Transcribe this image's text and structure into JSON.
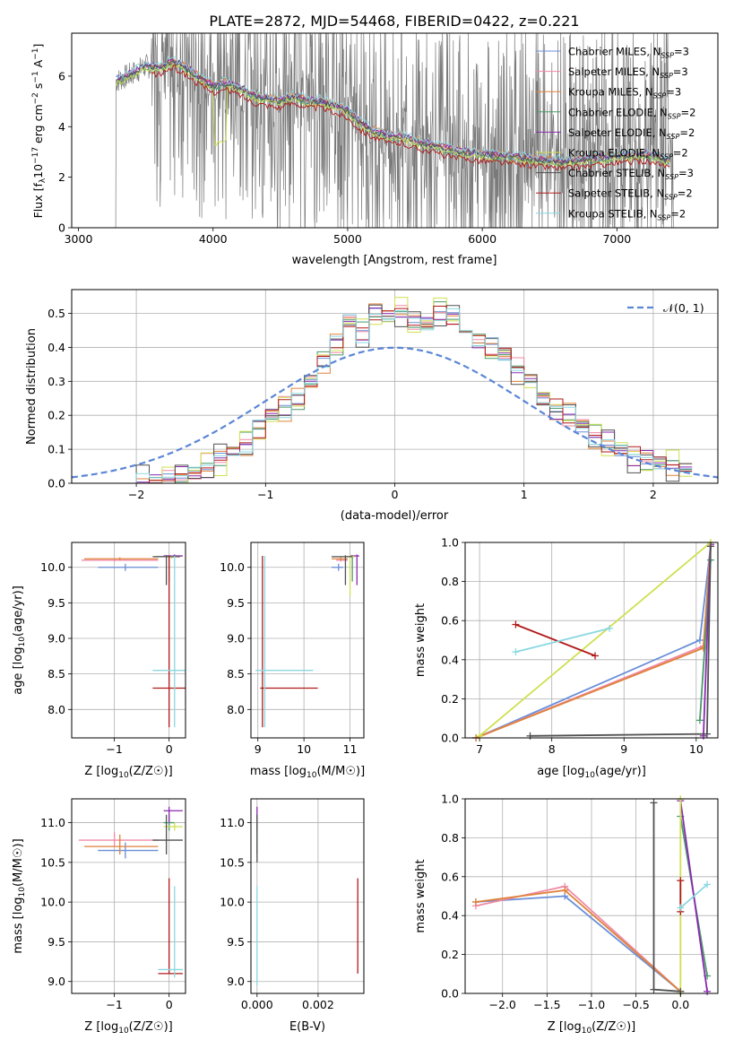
{
  "figure_title": "PLATE=2872, MJD=54468, FIBERID=0422, z=0.221",
  "series_styles": [
    {
      "name": "Chabrier MILES, N_SSP=3",
      "color": "#6a8fd8"
    },
    {
      "name": "Salpeter MILES, N_SSP=3",
      "color": "#f08aa6"
    },
    {
      "name": "Kroupa MILES, N_SSP=3",
      "color": "#e0823a"
    },
    {
      "name": "Chabrier ELODIE, N_SSP=2",
      "color": "#4a9a6a"
    },
    {
      "name": "Salpeter ELODIE, N_SSP=2",
      "color": "#8a2ab0"
    },
    {
      "name": "Kroupa ELODIE, N_SSP=2",
      "color": "#cfe050"
    },
    {
      "name": "Chabrier STELIB, N_SSP=3",
      "color": "#505050"
    },
    {
      "name": "Salpeter STELIB, N_SSP=2",
      "color": "#b01a1a"
    },
    {
      "name": "Kroupa STELIB, N_SSP=2",
      "color": "#8ad8e0"
    }
  ],
  "chart_data": [
    {
      "id": "spectrum",
      "type": "line",
      "xlabel": "wavelength [Angstrom, rest frame]",
      "ylabel": "Flux [f_λ 10^-17 erg cm^-2 s^-1 A^-1]",
      "xlim": [
        2950,
        7750
      ],
      "ylim": [
        0,
        7.7
      ],
      "xticks": [
        3000,
        4000,
        5000,
        6000,
        7000
      ],
      "yticks": [
        0,
        2,
        4,
        6
      ],
      "grid": false,
      "legend": "top-right",
      "legend_entries": [
        {
          "base": "Chabrier MILES, N",
          "sub": "SSP",
          "tail": "=3"
        },
        {
          "base": "Salpeter MILES, N",
          "sub": "SSP",
          "tail": "=3"
        },
        {
          "base": "Kroupa MILES, N",
          "sub": "SSP",
          "tail": "=3"
        },
        {
          "base": "Chabrier ELODIE, N",
          "sub": "SSP",
          "tail": "=2"
        },
        {
          "base": "Salpeter ELODIE, N",
          "sub": "SSP",
          "tail": "=2"
        },
        {
          "base": "Kroupa ELODIE, N",
          "sub": "SSP",
          "tail": "=2"
        },
        {
          "base": "Chabrier STELIB, N",
          "sub": "SSP",
          "tail": "=3"
        },
        {
          "base": "Salpeter STELIB, N",
          "sub": "SSP",
          "tail": "=2"
        },
        {
          "base": "Kroupa STELIB, N",
          "sub": "SSP",
          "tail": "=2"
        }
      ],
      "model_continuum": {
        "x": [
          3280,
          3400,
          3500,
          3600,
          3700,
          3800,
          3900,
          4000,
          4100,
          4200,
          4300,
          4400,
          4500,
          4600,
          4700,
          4800,
          4900,
          5000,
          5100,
          5200,
          5300,
          5400,
          5500,
          5600,
          5800,
          6000,
          6200,
          6400,
          6600,
          6800,
          7000,
          7200,
          7400
        ],
        "y": [
          5.8,
          6.1,
          6.4,
          6.3,
          6.6,
          6.3,
          5.9,
          5.6,
          5.7,
          5.5,
          5.2,
          5.1,
          5.0,
          5.2,
          5.0,
          5.0,
          4.8,
          4.6,
          4.1,
          3.8,
          3.6,
          3.6,
          3.4,
          3.3,
          3.0,
          2.9,
          2.8,
          2.7,
          2.6,
          2.7,
          2.8,
          2.9,
          2.6
        ]
      }
    },
    {
      "id": "residuals",
      "type": "step",
      "xlabel": "(data-model)/error",
      "ylabel": "Normed distribution",
      "xlim": [
        -2.5,
        2.5
      ],
      "ylim": [
        0,
        0.57
      ],
      "xticks": [
        -2,
        -1,
        0,
        1,
        2
      ],
      "yticks": [
        0.0,
        0.1,
        0.2,
        0.3,
        0.4,
        0.5
      ],
      "grid": true,
      "legend": "top-right",
      "legend_label": "𝒩(0, 1)",
      "normal_color": "#5b86d6",
      "bins_start": -2.0,
      "bin_width": 0.1,
      "hist": [
        0.005,
        0.005,
        0.01,
        0.02,
        0.03,
        0.05,
        0.07,
        0.09,
        0.12,
        0.16,
        0.2,
        0.22,
        0.24,
        0.3,
        0.36,
        0.41,
        0.48,
        0.44,
        0.5,
        0.49,
        0.5,
        0.48,
        0.47,
        0.5,
        0.49,
        0.45,
        0.42,
        0.4,
        0.38,
        0.33,
        0.3,
        0.25,
        0.22,
        0.2,
        0.17,
        0.14,
        0.12,
        0.1,
        0.08,
        0.07,
        0.06,
        0.05,
        0.04
      ]
    },
    {
      "id": "age_vs_Z",
      "type": "errorbar",
      "xlabel_base": "Z [log",
      "xlabel_sub": "10",
      "xlabel_rest": "(Z/Z☉)]",
      "ylabel_base": "age  [log",
      "ylabel_sub": "10",
      "ylabel_rest": "(age/yr)]",
      "xlim": [
        -1.78,
        0.3
      ],
      "ylim": [
        7.6,
        10.35
      ],
      "xticks": [
        -1,
        0
      ],
      "yticks": [
        8.0,
        8.5,
        9.0,
        9.5,
        10.0
      ],
      "points": [
        {
          "s": 0,
          "x": -0.8,
          "y": 10.0,
          "xl": -1.3,
          "xh": -0.2,
          "yl": 9.95,
          "yh": 10.05
        },
        {
          "s": 1,
          "x": -1.0,
          "y": 10.1,
          "xl": -1.6,
          "xh": -0.2,
          "yl": 10.08,
          "yh": 10.12
        },
        {
          "s": 2,
          "x": -0.9,
          "y": 10.12,
          "xl": -1.55,
          "xh": -0.2,
          "yl": 10.1,
          "yh": 10.14
        },
        {
          "s": 3,
          "x": 0.0,
          "y": 10.15,
          "xl": -0.25,
          "xh": 0.1,
          "yl": 9.8,
          "yh": 10.17
        },
        {
          "s": 4,
          "x": 0.1,
          "y": 10.16,
          "xl": -0.1,
          "xh": 0.25,
          "yl": 10.14,
          "yh": 10.18
        },
        {
          "s": 5,
          "x": 0.05,
          "y": 10.15,
          "xl": -0.1,
          "xh": 0.2,
          "yl": 10.12,
          "yh": 10.17
        },
        {
          "s": 6,
          "x": -0.05,
          "y": 10.15,
          "xl": -0.3,
          "xh": 0.2,
          "yl": 9.75,
          "yh": 10.17
        },
        {
          "s": 7,
          "x": 0.0,
          "y": 8.3,
          "xl": -0.3,
          "xh": 0.3,
          "yl": 7.75,
          "yh": 10.16
        },
        {
          "s": 8,
          "x": 0.1,
          "y": 8.55,
          "xl": -0.3,
          "xh": 0.3,
          "yl": 7.75,
          "yh": 10.16
        }
      ]
    },
    {
      "id": "age_vs_mass",
      "type": "errorbar",
      "xlabel_base": "mass [log",
      "xlabel_sub": "10",
      "xlabel_rest": "(M/M☉)]",
      "xlim": [
        8.85,
        11.3
      ],
      "ylim": [
        7.6,
        10.35
      ],
      "xticks": [
        9,
        10,
        11
      ],
      "yticks": [
        8.0,
        8.5,
        9.0,
        9.5,
        10.0
      ],
      "points": [
        {
          "s": 0,
          "x": 10.75,
          "y": 10.0,
          "xl": 10.6,
          "xh": 10.85,
          "yl": 9.95,
          "yh": 10.05
        },
        {
          "s": 1,
          "x": 10.8,
          "y": 10.1,
          "xl": 10.7,
          "xh": 10.95,
          "yl": 10.08,
          "yh": 10.12
        },
        {
          "s": 2,
          "x": 10.8,
          "y": 10.12,
          "xl": 10.6,
          "xh": 10.95,
          "yl": 10.1,
          "yh": 10.14
        },
        {
          "s": 3,
          "x": 11.05,
          "y": 10.15,
          "xl": 10.95,
          "xh": 11.1,
          "yl": 9.8,
          "yh": 10.17
        },
        {
          "s": 4,
          "x": 11.15,
          "y": 10.16,
          "xl": 11.0,
          "xh": 11.2,
          "yl": 9.75,
          "yh": 10.18
        },
        {
          "s": 5,
          "x": 11.0,
          "y": 10.15,
          "xl": 10.9,
          "xh": 11.1,
          "yl": 9.6,
          "yh": 10.17
        },
        {
          "s": 6,
          "x": 10.9,
          "y": 10.15,
          "xl": 10.6,
          "xh": 11.05,
          "yl": 9.75,
          "yh": 10.17
        },
        {
          "s": 7,
          "x": 9.1,
          "y": 8.3,
          "xl": 9.05,
          "xh": 10.3,
          "yl": 7.75,
          "yh": 10.16
        },
        {
          "s": 8,
          "x": 9.15,
          "y": 8.55,
          "xl": 8.95,
          "xh": 10.2,
          "yl": 7.75,
          "yh": 10.16
        }
      ]
    },
    {
      "id": "weight_vs_age",
      "type": "line",
      "xlabel_base": "age  [log",
      "xlabel_sub": "10",
      "xlabel_rest": "(age/yr)]",
      "ylabel": "mass weight",
      "xlim": [
        6.8,
        10.3
      ],
      "ylim": [
        0,
        1
      ],
      "xticks": [
        7,
        8,
        9,
        10
      ],
      "yticks": [
        0.0,
        0.2,
        0.4,
        0.6,
        0.8,
        1.0
      ],
      "lines": [
        {
          "s": 0,
          "x": [
            6.95,
            10.05,
            10.2
          ],
          "y": [
            0.0,
            0.5,
            0.98
          ]
        },
        {
          "s": 1,
          "x": 6.95,
          "x2": null,
          "xs": [
            6.95,
            10.1,
            10.2
          ],
          "ys": [
            0.0,
            0.47,
            0.98
          ]
        },
        {
          "s": 2,
          "xs": [
            6.95,
            10.1,
            10.2
          ],
          "ys": [
            0.0,
            0.46,
            0.98
          ]
        },
        {
          "s": 3,
          "xs": [
            10.05,
            10.2
          ],
          "ys": [
            0.09,
            0.91
          ]
        },
        {
          "s": 4,
          "xs": [
            10.1,
            10.2
          ],
          "ys": [
            0.01,
            0.99
          ]
        },
        {
          "s": 5,
          "xs": [
            7.0,
            10.2
          ],
          "ys": [
            0.01,
            1.0
          ]
        },
        {
          "s": 6,
          "xs": [
            7.7,
            10.15,
            10.2
          ],
          "ys": [
            0.01,
            0.02,
            0.98
          ]
        },
        {
          "s": 7,
          "xs": [
            7.5,
            8.6
          ],
          "ys": [
            0.58,
            0.42
          ]
        },
        {
          "s": 8,
          "xs": [
            7.5,
            8.8
          ],
          "ys": [
            0.44,
            0.56
          ]
        }
      ]
    },
    {
      "id": "mass_vs_Z",
      "type": "errorbar",
      "xlabel_base": "Z [log",
      "xlabel_sub": "10",
      "xlabel_rest": "(Z/Z☉)]",
      "ylabel_base": "mass [log",
      "ylabel_sub": "10",
      "ylabel_rest": "(M/M☉)]",
      "xlim": [
        -1.78,
        0.3
      ],
      "ylim": [
        8.85,
        11.3
      ],
      "xticks": [
        -1,
        0
      ],
      "yticks": [
        9.0,
        9.5,
        10.0,
        10.5,
        11.0
      ],
      "points": [
        {
          "s": 0,
          "x": -0.8,
          "y": 10.65,
          "xl": -1.3,
          "xh": -0.2,
          "yl": 10.55,
          "yh": 10.75
        },
        {
          "s": 1,
          "x": -1.0,
          "y": 10.78,
          "xl": -1.65,
          "xh": -0.2,
          "yl": 10.7,
          "yh": 10.88
        },
        {
          "s": 2,
          "x": -0.9,
          "y": 10.7,
          "xl": -1.55,
          "xh": -0.2,
          "yl": 10.6,
          "yh": 10.85
        },
        {
          "s": 3,
          "x": 0.0,
          "y": 11.0,
          "xl": -0.1,
          "xh": 0.1,
          "yl": 10.9,
          "yh": 11.1
        },
        {
          "s": 4,
          "x": 0.0,
          "y": 11.15,
          "xl": -0.1,
          "xh": 0.25,
          "yl": 11.0,
          "yh": 11.2
        },
        {
          "s": 5,
          "x": 0.1,
          "y": 10.95,
          "xl": -0.1,
          "xh": 0.25,
          "yl": 10.9,
          "yh": 11.0
        },
        {
          "s": 6,
          "x": -0.05,
          "y": 10.78,
          "xl": -0.3,
          "xh": 0.25,
          "yl": 10.6,
          "yh": 11.1
        },
        {
          "s": 7,
          "x": 0.0,
          "y": 9.1,
          "xl": -0.2,
          "xh": 0.25,
          "yl": 9.1,
          "yh": 10.3
        },
        {
          "s": 8,
          "x": 0.1,
          "y": 9.15,
          "xl": -0.2,
          "xh": 0.25,
          "yl": 9.05,
          "yh": 10.2
        }
      ]
    },
    {
      "id": "mass_vs_ebv",
      "type": "errorbar",
      "xlabel": "E(B-V)",
      "xlim": [
        -0.0002,
        0.0035
      ],
      "ylim": [
        8.85,
        11.3
      ],
      "xticks": [
        0.0,
        0.002
      ],
      "xtick_labels": [
        "0.000",
        "0.002"
      ],
      "yticks": [
        9.0,
        9.5,
        10.0,
        10.5,
        11.0
      ],
      "points": [
        {
          "s": 3,
          "x": 0.0,
          "y": 11.0,
          "xl": 0.0,
          "xh": 0.0,
          "yl": 10.6,
          "yh": 11.1
        },
        {
          "s": 4,
          "x": 0.0,
          "y": 11.15,
          "xl": 0.0,
          "xh": 0.0,
          "yl": 10.9,
          "yh": 11.2
        },
        {
          "s": 6,
          "x": 0.0,
          "y": 10.8,
          "xl": 0.0,
          "xh": 0.0,
          "yl": 10.5,
          "yh": 11.1
        },
        {
          "s": 8,
          "x": 0.0,
          "y": 9.2,
          "xl": 0.0,
          "xh": 0.0,
          "yl": 8.95,
          "yh": 10.2
        },
        {
          "s": 7,
          "x": 0.0033,
          "y": 9.7,
          "xl": 0.0033,
          "xh": 0.0033,
          "yl": 9.1,
          "yh": 10.3
        }
      ]
    },
    {
      "id": "weight_vs_Z",
      "type": "line",
      "xlabel_base": "Z [log",
      "xlabel_sub": "10",
      "xlabel_rest": "(Z/Z☉)]",
      "ylabel": "mass weight",
      "xlim": [
        -2.42,
        0.42
      ],
      "ylim": [
        0,
        1
      ],
      "xticks": [
        -2.0,
        -1.5,
        -1.0,
        -0.5,
        0.0
      ],
      "xtick_labels": [
        "−2.0",
        "−1.5",
        "−1.0",
        "−0.5",
        "0.0"
      ],
      "yticks": [
        0.0,
        0.2,
        0.4,
        0.6,
        0.8,
        1.0
      ],
      "lines": [
        {
          "s": 0,
          "xs": [
            -2.3,
            -1.3,
            0.0
          ],
          "ys": [
            0.47,
            0.5,
            0.01
          ]
        },
        {
          "s": 1,
          "xs": [
            -2.3,
            -1.3,
            0.0
          ],
          "ys": [
            0.45,
            0.55,
            0.01
          ]
        },
        {
          "s": 2,
          "xs": [
            -2.3,
            -1.3,
            0.0
          ],
          "ys": [
            0.47,
            0.53,
            0.01
          ]
        },
        {
          "s": 3,
          "xs": [
            0.0,
            0.3
          ],
          "ys": [
            0.91,
            0.09
          ]
        },
        {
          "s": 4,
          "xs": [
            0.0,
            0.3
          ],
          "ys": [
            0.99,
            0.01
          ]
        },
        {
          "s": 5,
          "xs": [
            0.0,
            0.0
          ],
          "ys": [
            0.0,
            1.0
          ]
        },
        {
          "s": 6,
          "xs": [
            -0.3,
            -0.3,
            0.0
          ],
          "ys": [
            0.98,
            0.02,
            0.01
          ]
        },
        {
          "s": 7,
          "xs": [
            0.0,
            0.0
          ],
          "ys": [
            0.42,
            0.58
          ]
        },
        {
          "s": 8,
          "xs": [
            0.0,
            0.3
          ],
          "ys": [
            0.44,
            0.56
          ]
        }
      ]
    }
  ]
}
